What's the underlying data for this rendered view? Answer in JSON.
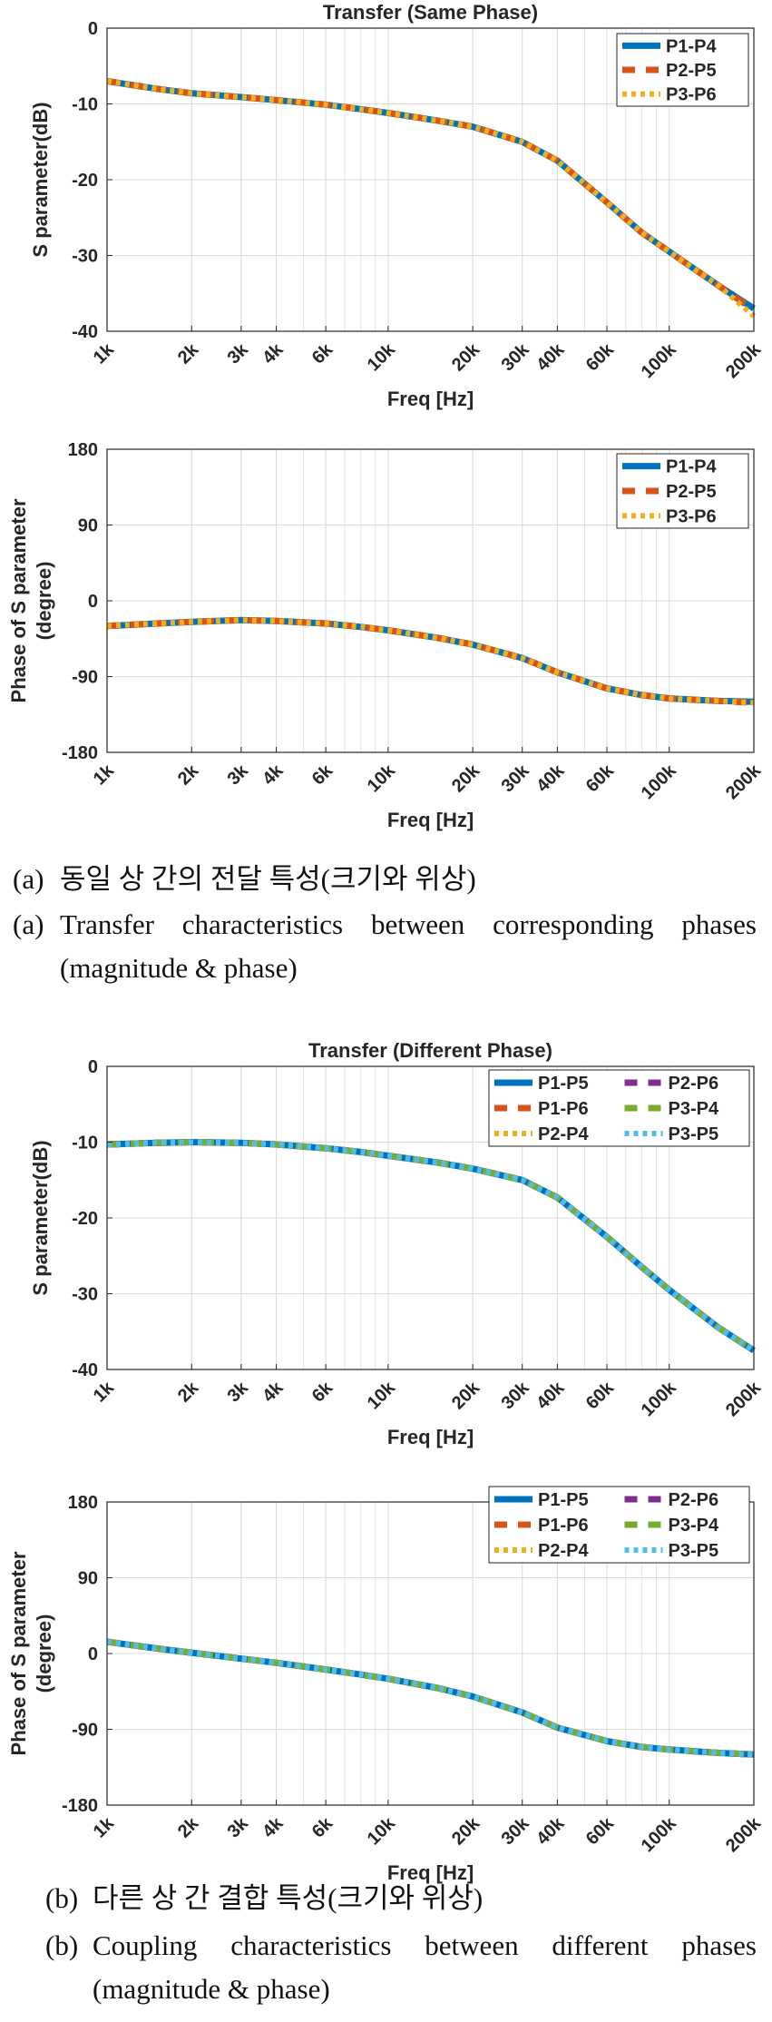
{
  "chart_data": [
    {
      "type": "line",
      "title": "Transfer (Same Phase)",
      "xlabel": "Freq [Hz]",
      "ylabel": "S parameter(dB)",
      "xscale": "log",
      "xlim": [
        1000,
        200000
      ],
      "ylim": [
        -40,
        0
      ],
      "yticks": [
        0,
        -10,
        -20,
        -30,
        -40
      ],
      "xticks": [
        1000,
        2000,
        3000,
        4000,
        6000,
        10000,
        20000,
        30000,
        40000,
        60000,
        100000,
        200000
      ],
      "xticklabels": [
        "1k",
        "2k",
        "3k",
        "4k",
        "6k",
        "10k",
        "20k",
        "30k",
        "40k",
        "60k",
        "100k",
        "200k"
      ],
      "legend_position": "top-right",
      "x": [
        1000,
        1500,
        2000,
        3000,
        4000,
        6000,
        8000,
        10000,
        15000,
        20000,
        30000,
        40000,
        60000,
        80000,
        100000,
        150000,
        200000
      ],
      "series": [
        {
          "name": "P1-P4",
          "color": "#0072BD",
          "style": "solid",
          "values": [
            -7.0,
            -8.0,
            -8.6,
            -9.1,
            -9.5,
            -10.1,
            -10.7,
            -11.2,
            -12.2,
            -13.0,
            -15.0,
            -17.5,
            -23.0,
            -27.0,
            -29.5,
            -34.0,
            -37.0
          ]
        },
        {
          "name": "P2-P5",
          "color": "#D95319",
          "style": "dashed",
          "values": [
            -7.0,
            -8.0,
            -8.6,
            -9.1,
            -9.5,
            -10.1,
            -10.7,
            -11.2,
            -12.2,
            -13.0,
            -15.0,
            -17.5,
            -23.0,
            -27.0,
            -29.5,
            -34.0,
            -37.2
          ]
        },
        {
          "name": "P3-P6",
          "color": "#EDB120",
          "style": "dotted",
          "values": [
            -7.0,
            -8.0,
            -8.6,
            -9.1,
            -9.5,
            -10.1,
            -10.7,
            -11.2,
            -12.2,
            -13.0,
            -15.0,
            -17.5,
            -23.0,
            -27.0,
            -29.5,
            -34.0,
            -38.0
          ]
        }
      ]
    },
    {
      "type": "line",
      "title": "",
      "xlabel": "Freq [Hz]",
      "ylabel": "Phase of S parameter (degree)",
      "ylabel_lines": [
        "Phase of S parameter",
        "(degree)"
      ],
      "xscale": "log",
      "xlim": [
        1000,
        200000
      ],
      "ylim": [
        -180,
        180
      ],
      "yticks": [
        180,
        90,
        0,
        -90,
        -180
      ],
      "xticks": [
        1000,
        2000,
        3000,
        4000,
        6000,
        10000,
        20000,
        30000,
        40000,
        60000,
        100000,
        200000
      ],
      "xticklabels": [
        "1k",
        "2k",
        "3k",
        "4k",
        "6k",
        "10k",
        "20k",
        "30k",
        "40k",
        "60k",
        "100k",
        "200k"
      ],
      "legend_position": "top-right",
      "x": [
        1000,
        1500,
        2000,
        3000,
        4000,
        6000,
        8000,
        10000,
        15000,
        20000,
        30000,
        40000,
        60000,
        80000,
        100000,
        150000,
        200000
      ],
      "series": [
        {
          "name": "P1-P4",
          "color": "#0072BD",
          "style": "solid",
          "values": [
            -30,
            -27,
            -25,
            -23,
            -24,
            -27,
            -31,
            -35,
            -44,
            -52,
            -68,
            -85,
            -104,
            -112,
            -116,
            -119,
            -120
          ]
        },
        {
          "name": "P2-P5",
          "color": "#D95319",
          "style": "dashed",
          "values": [
            -30,
            -27,
            -25,
            -23,
            -24,
            -27,
            -31,
            -35,
            -44,
            -52,
            -68,
            -85,
            -104,
            -112,
            -116,
            -119,
            -121
          ]
        },
        {
          "name": "P3-P6",
          "color": "#EDB120",
          "style": "dotted",
          "values": [
            -30,
            -27,
            -25,
            -23,
            -24,
            -27,
            -31,
            -35,
            -44,
            -52,
            -68,
            -85,
            -104,
            -112,
            -116,
            -119,
            -121
          ]
        }
      ]
    },
    {
      "type": "line",
      "title": "Transfer (Different Phase)",
      "xlabel": "Freq [Hz]",
      "ylabel": "S parameter(dB)",
      "xscale": "log",
      "xlim": [
        1000,
        200000
      ],
      "ylim": [
        -40,
        0
      ],
      "yticks": [
        0,
        -10,
        -20,
        -30,
        -40
      ],
      "xticks": [
        1000,
        2000,
        3000,
        4000,
        6000,
        10000,
        20000,
        30000,
        40000,
        60000,
        100000,
        200000
      ],
      "xticklabels": [
        "1k",
        "2k",
        "3k",
        "4k",
        "6k",
        "10k",
        "20k",
        "30k",
        "40k",
        "60k",
        "100k",
        "200k"
      ],
      "legend_position": "top-right",
      "x": [
        1000,
        1500,
        2000,
        3000,
        4000,
        6000,
        8000,
        10000,
        15000,
        20000,
        30000,
        40000,
        60000,
        80000,
        100000,
        150000,
        200000
      ],
      "series": [
        {
          "name": "P1-P5",
          "color": "#0072BD",
          "style": "solid",
          "values": [
            -10.3,
            -10.1,
            -10.0,
            -10.1,
            -10.3,
            -10.8,
            -11.3,
            -11.8,
            -12.7,
            -13.5,
            -15.0,
            -17.3,
            -22.5,
            -26.5,
            -29.5,
            -34.5,
            -37.5
          ]
        },
        {
          "name": "P1-P6",
          "color": "#D95319",
          "style": "dashed",
          "values": [
            -10.3,
            -10.1,
            -10.0,
            -10.1,
            -10.3,
            -10.8,
            -11.3,
            -11.8,
            -12.7,
            -13.5,
            -15.0,
            -17.3,
            -22.5,
            -26.5,
            -29.5,
            -34.5,
            -37.5
          ]
        },
        {
          "name": "P2-P4",
          "color": "#EDB120",
          "style": "dotted",
          "values": [
            -10.3,
            -10.1,
            -10.0,
            -10.1,
            -10.3,
            -10.8,
            -11.3,
            -11.8,
            -12.7,
            -13.5,
            -15.0,
            -17.3,
            -22.5,
            -26.5,
            -29.5,
            -34.5,
            -37.5
          ]
        },
        {
          "name": "P2-P6",
          "color": "#7E2F8E",
          "style": "dashed",
          "values": [
            -10.3,
            -10.1,
            -10.0,
            -10.1,
            -10.3,
            -10.8,
            -11.3,
            -11.8,
            -12.7,
            -13.5,
            -15.0,
            -17.3,
            -22.5,
            -26.5,
            -29.5,
            -34.5,
            -37.5
          ]
        },
        {
          "name": "P3-P4",
          "color": "#77AC30",
          "style": "dashed",
          "values": [
            -10.3,
            -10.1,
            -10.0,
            -10.1,
            -10.3,
            -10.8,
            -11.3,
            -11.8,
            -12.7,
            -13.5,
            -15.0,
            -17.3,
            -22.5,
            -26.5,
            -29.5,
            -34.5,
            -37.5
          ]
        },
        {
          "name": "P3-P5",
          "color": "#4DBEEE",
          "style": "dotted",
          "values": [
            -10.3,
            -10.1,
            -10.0,
            -10.1,
            -10.3,
            -10.8,
            -11.3,
            -11.8,
            -12.7,
            -13.5,
            -15.0,
            -17.3,
            -22.5,
            -26.5,
            -29.5,
            -34.5,
            -37.5
          ]
        }
      ]
    },
    {
      "type": "line",
      "title": "",
      "xlabel": "Freq [Hz]",
      "ylabel": "Phase of S parameter (degree)",
      "ylabel_lines": [
        "Phase of S parameter",
        "(degree)"
      ],
      "xscale": "log",
      "xlim": [
        1000,
        200000
      ],
      "ylim": [
        -180,
        180
      ],
      "yticks": [
        180,
        90,
        0,
        -90,
        -180
      ],
      "xticks": [
        1000,
        2000,
        3000,
        4000,
        6000,
        10000,
        20000,
        30000,
        40000,
        60000,
        100000,
        200000
      ],
      "xticklabels": [
        "1k",
        "2k",
        "3k",
        "4k",
        "6k",
        "10k",
        "20k",
        "30k",
        "40k",
        "60k",
        "100k",
        "200k"
      ],
      "legend_position": "top-right",
      "legend_columns": 2,
      "x": [
        1000,
        1500,
        2000,
        3000,
        4000,
        6000,
        8000,
        10000,
        15000,
        20000,
        30000,
        40000,
        60000,
        80000,
        100000,
        150000,
        200000
      ],
      "series": [
        {
          "name": "P1-P5",
          "color": "#0072BD",
          "style": "solid",
          "values": [
            14,
            6,
            1,
            -6,
            -11,
            -19,
            -25,
            -30,
            -41,
            -51,
            -70,
            -88,
            -104,
            -111,
            -114,
            -118,
            -120
          ]
        },
        {
          "name": "P1-P6",
          "color": "#D95319",
          "style": "dashed",
          "values": [
            14,
            6,
            1,
            -6,
            -11,
            -19,
            -25,
            -30,
            -41,
            -51,
            -70,
            -88,
            -104,
            -111,
            -114,
            -118,
            -120
          ]
        },
        {
          "name": "P2-P4",
          "color": "#EDB120",
          "style": "dotted",
          "values": [
            14,
            6,
            1,
            -6,
            -11,
            -19,
            -25,
            -30,
            -41,
            -51,
            -70,
            -88,
            -104,
            -111,
            -114,
            -118,
            -120
          ]
        },
        {
          "name": "P2-P6",
          "color": "#7E2F8E",
          "style": "dashed",
          "values": [
            14,
            6,
            1,
            -6,
            -11,
            -19,
            -25,
            -30,
            -41,
            -51,
            -70,
            -88,
            -104,
            -111,
            -114,
            -118,
            -120
          ]
        },
        {
          "name": "P3-P4",
          "color": "#77AC30",
          "style": "dashed",
          "values": [
            14,
            6,
            1,
            -6,
            -11,
            -19,
            -25,
            -30,
            -41,
            -51,
            -70,
            -88,
            -104,
            -111,
            -114,
            -118,
            -120
          ]
        },
        {
          "name": "P3-P5",
          "color": "#4DBEEE",
          "style": "dotted",
          "values": [
            14,
            6,
            1,
            -6,
            -11,
            -19,
            -25,
            -30,
            -41,
            -51,
            -70,
            -88,
            -104,
            -111,
            -114,
            -118,
            -120
          ]
        }
      ]
    }
  ],
  "captions": {
    "a_label": "(a)",
    "a_korean": "동일 상 간의 전달 특성(크기와 위상)",
    "a_english_line1": "Transfer characteristics between corresponding phases",
    "a_english_line2": "(magnitude & phase)",
    "b_label": "(b)",
    "b_korean": "다른 상 간 결합 특성(크기와 위상)",
    "b_english_line1": "Coupling characteristics between different phases",
    "b_english_line2": "(magnitude & phase)"
  }
}
